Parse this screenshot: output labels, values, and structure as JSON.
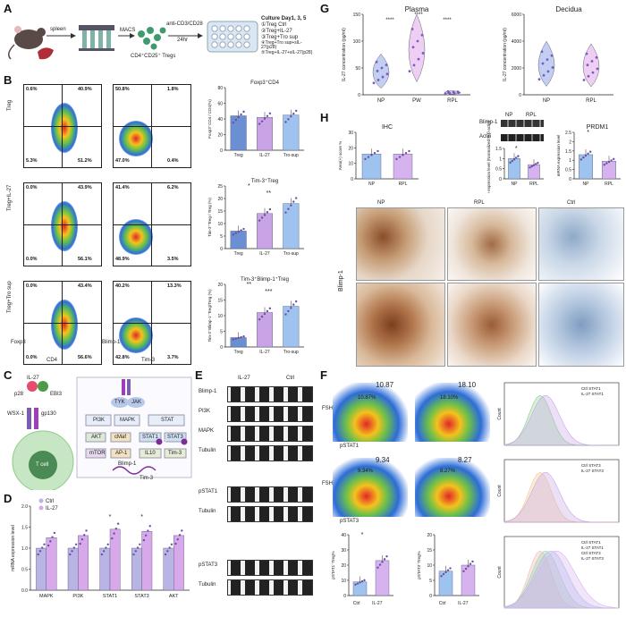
{
  "panels": {
    "A": "A",
    "B": "B",
    "C": "C",
    "D": "D",
    "E": "E",
    "F": "F",
    "G": "G",
    "H": "H"
  },
  "panelA": {
    "spleen": "spleen",
    "macs": "MACS",
    "anti": "anti-CD3/CD28",
    "hours": "24hr",
    "cells": "CD4⁺CD25⁺ Tregs",
    "culture_title": "Culture Day1, 3, 5",
    "conditions": [
      "①Treg Ctrl",
      "②Treg+IL-27",
      "③Treg+Tro sup",
      "④Treg+Tro sup+sIL-27(p28)",
      "⑤Treg+IL-27+sIL-27(p28)"
    ]
  },
  "panelB": {
    "row_labels": [
      "Treg",
      "Treg+IL-27",
      "Treg+Tro sup"
    ],
    "x_axis_left": "CD4",
    "y_axis_left": "Foxp3",
    "x_axis_right": "Tim-3",
    "y_axis_right": "Blimp-1",
    "left_quads": [
      [
        "0.6%",
        "40.9%",
        "5.3%",
        "51.2%"
      ],
      [
        "0.0%",
        "43.9%",
        "0.0%",
        "56.1%"
      ],
      [
        "0.0%",
        "43.4%",
        "0.0%",
        "56.6%"
      ]
    ],
    "right_quads": [
      [
        "50.8%",
        "1.8%",
        "47.0%",
        "0.4%"
      ],
      [
        "41.4%",
        "6.2%",
        "48.9%",
        "3.5%"
      ],
      [
        "40.2%",
        "13.3%",
        "42.8%",
        "3.7%"
      ]
    ]
  },
  "chart_data": [
    {
      "type": "bar",
      "id": "B-foxp3",
      "title": "Foxp3⁺CD4",
      "ylabel": "Foxp3⁺CD4 / CD4(%)",
      "categories": [
        "Treg",
        "IL-27",
        "Tro-sup"
      ],
      "values": [
        44,
        42,
        45
      ],
      "ylim": [
        0,
        80
      ],
      "yticks": [
        0,
        20,
        40,
        60,
        80
      ],
      "colors": [
        "#6b8fd3",
        "#c8a4e6",
        "#9ec3ee"
      ]
    },
    {
      "type": "bar",
      "id": "B-tim3",
      "title": "Tim-3⁺Treg",
      "ylabel": "Tim-3⁺Treg / Treg (%)",
      "categories": [
        "Treg",
        "IL-27",
        "Tro-sup"
      ],
      "values": [
        7,
        14,
        18
      ],
      "ylim": [
        0,
        25
      ],
      "yticks": [
        0,
        5,
        10,
        15,
        20,
        25
      ],
      "sig": [
        "*",
        "**"
      ],
      "colors": [
        "#6b8fd3",
        "#c8a4e6",
        "#9ec3ee"
      ]
    },
    {
      "type": "bar",
      "id": "B-blimp",
      "title": "Tim-3⁺Blimp-1⁺Treg",
      "ylabel": "Tim-3⁺Blimp-1⁺Treg/Treg (%)",
      "categories": [
        "Treg",
        "IL-27",
        "Tro-sup"
      ],
      "values": [
        3,
        11,
        13
      ],
      "ylim": [
        0,
        20
      ],
      "yticks": [
        0,
        5,
        10,
        15,
        20
      ],
      "sig": [
        "**",
        "***"
      ],
      "colors": [
        "#6b8fd3",
        "#c8a4e6",
        "#9ec3ee"
      ]
    },
    {
      "type": "bar",
      "id": "D",
      "ylabel": "mRNA expression level",
      "categories": [
        "MAPK",
        "PI3K",
        "STAT1",
        "STAT3",
        "AKT"
      ],
      "series": [
        {
          "name": "Ctrl",
          "values": [
            1.0,
            1.0,
            1.0,
            1.0,
            1.0
          ]
        },
        {
          "name": "IL-27",
          "values": [
            1.25,
            1.3,
            1.45,
            1.4,
            1.3
          ]
        }
      ],
      "sig": [
        "",
        "",
        "*",
        "*",
        ""
      ],
      "ylim": [
        0,
        2.0
      ],
      "yticks": [
        0,
        0.5,
        1.0,
        1.5,
        2.0
      ],
      "colors": [
        "#b8b4e4",
        "#d8a9ea"
      ]
    },
    {
      "type": "scatter",
      "id": "G-plasma",
      "title": "Plasma",
      "ylabel": "IL-27 concentration (pg/ml)",
      "categories": [
        "NP",
        "PW",
        "RPL"
      ],
      "values": [
        40,
        80,
        4
      ],
      "ylim": [
        0,
        150
      ],
      "yticks": [
        0,
        50,
        100,
        150
      ],
      "sig": [
        "****",
        "****",
        "****"
      ],
      "colors": [
        "#8fa6e8",
        "#e0a6ea",
        "#b4b4e8"
      ]
    },
    {
      "type": "scatter",
      "id": "G-decidua",
      "title": "Decidua",
      "ylabel": "IL-27 concentration (pg/ml)",
      "categories": [
        "NP",
        "RPL"
      ],
      "values": [
        2100,
        2000
      ],
      "ylim": [
        0,
        6000
      ],
      "yticks": [
        0,
        2000,
        4000,
        6000
      ],
      "colors": [
        "#8fa6e8",
        "#e0a6ea"
      ]
    },
    {
      "type": "bar",
      "id": "H-ihc",
      "title": "IHC",
      "ylabel": "Area(+) score %",
      "categories": [
        "NP",
        "RPL"
      ],
      "values": [
        16,
        16
      ],
      "ylim": [
        0,
        30
      ],
      "yticks": [
        0,
        10,
        20,
        30
      ],
      "colors": [
        "#9ec3ee",
        "#d6b2ee"
      ]
    },
    {
      "type": "bar",
      "id": "H-wb",
      "ylabel": "Relative expression level (Normalized to β-actin)",
      "categories": [
        "NP",
        "RPL"
      ],
      "values": [
        1.0,
        0.7
      ],
      "ylim": [
        0,
        1.5
      ],
      "yticks": [
        0,
        0.5,
        1.0,
        1.5
      ],
      "sig": [
        "*"
      ],
      "colors": [
        "#9ec3ee",
        "#d6b2ee"
      ]
    },
    {
      "type": "bar",
      "id": "H-prdm1",
      "title": "PRDM1",
      "ylabel": "mRNA expression level",
      "categories": [
        "NP",
        "RPL"
      ],
      "values": [
        1.3,
        0.95
      ],
      "ylim": [
        0,
        2.5
      ],
      "yticks": [
        0,
        0.5,
        1.0,
        1.5,
        2.0,
        2.5
      ],
      "sig": [
        "*"
      ],
      "colors": [
        "#9ec3ee",
        "#d6b2ee"
      ]
    },
    {
      "type": "bar",
      "id": "F-pstat1",
      "ylabel": "pSTAT1⁺Treg%",
      "categories": [
        "Ctrl",
        "IL-27"
      ],
      "values": [
        9,
        23
      ],
      "ylim": [
        0,
        40
      ],
      "yticks": [
        0,
        10,
        20,
        30,
        40
      ],
      "sig": [
        "*"
      ],
      "colors": [
        "#9ec3ee",
        "#d6b2ee"
      ]
    },
    {
      "type": "bar",
      "id": "F-pstat3",
      "ylabel": "pSTAT3⁺Treg%",
      "categories": [
        "Ctrl",
        "IL-27"
      ],
      "values": [
        8,
        10
      ],
      "ylim": [
        0,
        20
      ],
      "yticks": [
        0,
        5,
        10,
        15,
        20
      ],
      "colors": [
        "#9ec3ee",
        "#d6b2ee"
      ]
    }
  ],
  "panelC": {
    "il27": "IL-27",
    "p28": "p28",
    "ebi3": "EBI3",
    "wsx1": "WSX-1",
    "gp130": "gp130",
    "tcell": "T cell",
    "tyk": "TYK",
    "jak": "JAK",
    "pi3k": "PI3K",
    "mapk": "MAPK",
    "stat": "STAT",
    "akt": "AKT",
    "cmaf": "cMaf",
    "stat1": "STAT1",
    "stat3": "STAT3",
    "p": "P",
    "mtor": "mTOR",
    "ap1": "AP-1",
    "il10": "IL10",
    "tim3": "Tim-3",
    "blimp": "Blimp-1",
    "tim3b": "Tim-3"
  },
  "panelD_legend": {
    "ctrl": "Ctrl",
    "il27": "IL-27"
  },
  "panelE": {
    "group1": "IL-27",
    "group2": "Ctrl",
    "rows1": [
      "Blimp-1",
      "PI3K",
      "MAPK",
      "Tubulin"
    ],
    "rows2": [
      "pSTAT1",
      "Tubulin"
    ],
    "rows3": [
      "pSTAT3",
      "Tubulin"
    ]
  },
  "panelF": {
    "top_values": [
      "10.87",
      "18.10"
    ],
    "top_gates": [
      "10.87%",
      "18.10%"
    ],
    "bottom_values": [
      "9.34",
      "8.27"
    ],
    "bottom_gates": [
      "9.34%",
      "8.27%"
    ],
    "y_axis": "FSH",
    "x_top": "pSTAT1",
    "x_bottom": "pSTAT3",
    "count": "Count",
    "legend_top": [
      "Ctrl STAT1",
      "IL-27 STAT1"
    ],
    "legend_bottom": [
      "Ctrl STAT3",
      "IL-27 STAT3"
    ],
    "legend_overlay": [
      "Ctrl STAT1",
      "IL-27 STAT1",
      "Ctrl STAT3",
      "IL-27 STAT3"
    ]
  },
  "panelH": {
    "wb_title": "Blimp-1",
    "wb_actin": "Actin",
    "wb_np": "NP",
    "wb_rpl": "RPL",
    "ihc_cols": [
      "NP",
      "RPL",
      "Ctrl"
    ],
    "ihc_row": "Blimp-1"
  }
}
